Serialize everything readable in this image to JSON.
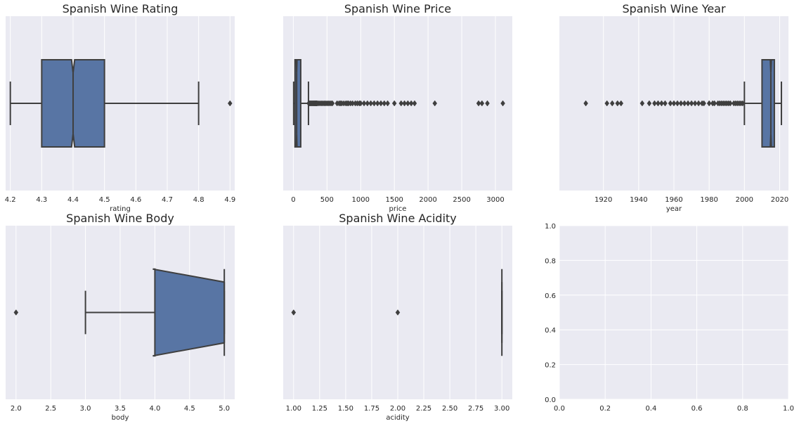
{
  "style": {
    "axes_bg": "#eaeaf2",
    "grid": "#ffffff",
    "box_fill": "#5875a4",
    "line": "#3f3f3f",
    "text": "#262626"
  },
  "chart_data": [
    {
      "type": "boxplot",
      "title": "Spanish Wine Rating",
      "xlabel": "rating",
      "xlim": [
        4.185,
        4.915
      ],
      "xticks": [
        "4.2",
        "4.3",
        "4.4",
        "4.5",
        "4.6",
        "4.7",
        "4.8",
        "4.9"
      ],
      "grid": true,
      "box": {
        "whisker_low": 4.2,
        "q1": 4.3,
        "median": 4.4,
        "q3": 4.5,
        "whisker_high": 4.8,
        "notch_low": 4.395,
        "notch_high": 4.405
      },
      "outliers": [
        4.9
      ]
    },
    {
      "type": "boxplot",
      "title": "Spanish Wine Price",
      "xlabel": "price",
      "xlim": [
        -150,
        3250
      ],
      "xticks": [
        "0",
        "500",
        "1000",
        "1500",
        "2000",
        "2500",
        "3000"
      ],
      "grid": true,
      "box": {
        "whisker_low": 5,
        "q1": 25,
        "median": 50,
        "q3": 110,
        "whisker_high": 225,
        "notch_low": 45,
        "notch_high": 55
      },
      "outliers": [
        230,
        240,
        250,
        260,
        270,
        280,
        290,
        300,
        310,
        320,
        330,
        340,
        350,
        360,
        380,
        400,
        420,
        440,
        460,
        480,
        500,
        520,
        540,
        560,
        580,
        650,
        680,
        700,
        720,
        750,
        780,
        800,
        820,
        850,
        880,
        920,
        950,
        980,
        1000,
        1050,
        1100,
        1150,
        1200,
        1250,
        1300,
        1350,
        1400,
        1500,
        1600,
        1650,
        1700,
        1750,
        1800,
        2100,
        2750,
        2800,
        2880,
        3110
      ]
    },
    {
      "type": "boxplot",
      "title": "Spanish Wine Year",
      "xlabel": "year",
      "xlim": [
        1895,
        2025
      ],
      "xticks": [
        "1920",
        "1940",
        "1960",
        "1980",
        "2000",
        "2020"
      ],
      "grid": true,
      "box": {
        "whisker_low": 2000,
        "q1": 2010,
        "median": 2015,
        "q3": 2017,
        "whisker_high": 2021,
        "notch_low": 2014.7,
        "notch_high": 2015.3
      },
      "outliers": [
        1910,
        1922,
        1925,
        1928,
        1930,
        1942,
        1946,
        1949,
        1951,
        1953,
        1955,
        1958,
        1960,
        1962,
        1964,
        1966,
        1968,
        1970,
        1972,
        1974,
        1976,
        1977,
        1980,
        1982,
        1983,
        1985,
        1986,
        1987,
        1988,
        1989,
        1990,
        1991,
        1992,
        1994,
        1995,
        1996,
        1997,
        1998,
        1999
      ]
    },
    {
      "type": "boxplot",
      "title": "Spanish Wine Body",
      "xlabel": "body",
      "xlim": [
        1.85,
        5.15
      ],
      "xticks": [
        "2.0",
        "2.5",
        "3.0",
        "3.5",
        "4.0",
        "4.5",
        "5.0"
      ],
      "grid": true,
      "box": {
        "whisker_low": 3.0,
        "q1": 4.0,
        "median": 5.0,
        "q3": 5.0,
        "whisker_high": 5.0,
        "notch_low": 4.0,
        "notch_high": 5.0,
        "notch_overshoot_low": 3.97,
        "notch_overshoot_high": 5.0
      },
      "outliers": [
        2.0
      ]
    },
    {
      "type": "boxplot",
      "title": "Spanish Wine Acidity",
      "xlabel": "acidity",
      "xlim": [
        0.9,
        3.1
      ],
      "xticks": [
        "1.00",
        "1.25",
        "1.50",
        "1.75",
        "2.00",
        "2.25",
        "2.50",
        "2.75",
        "3.00"
      ],
      "grid": true,
      "box": {
        "whisker_low": 3.0,
        "q1": 3.0,
        "median": 3.0,
        "q3": 3.0,
        "whisker_high": 3.0
      },
      "outliers": [
        1.0,
        2.0
      ]
    },
    {
      "type": "empty",
      "title": "",
      "xlim": [
        0,
        1
      ],
      "ylim": [
        0,
        1
      ],
      "xticks": [
        "0.0",
        "0.2",
        "0.4",
        "0.6",
        "0.8",
        "1.0"
      ],
      "yticks": [
        "0.0",
        "0.2",
        "0.4",
        "0.6",
        "0.8",
        "1.0"
      ],
      "grid": true
    }
  ]
}
